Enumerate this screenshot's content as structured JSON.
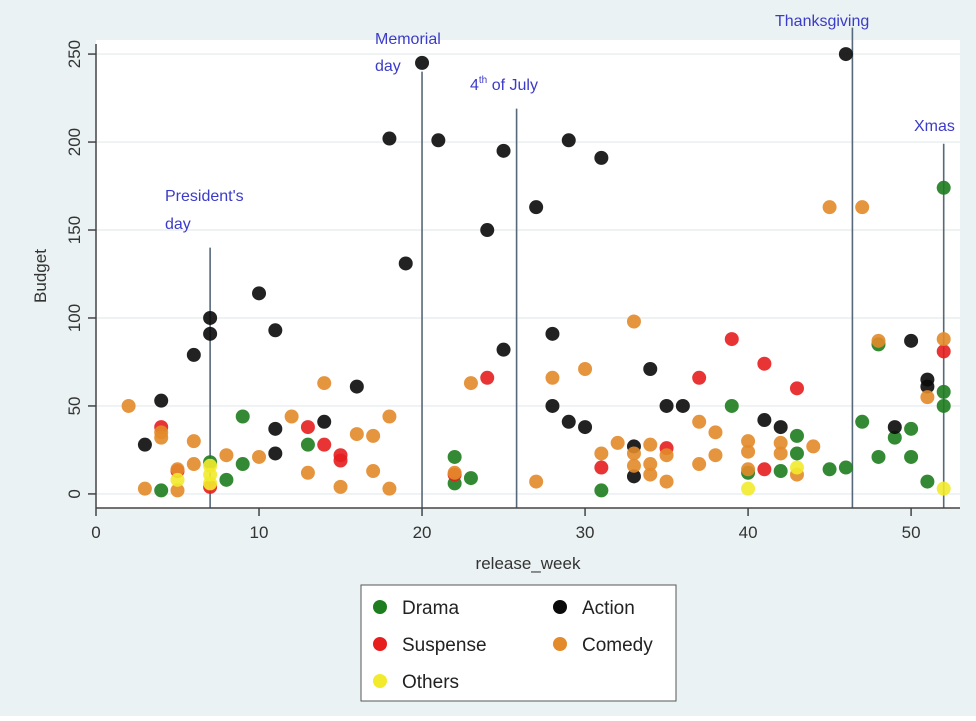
{
  "chart_data": {
    "type": "scatter",
    "title": "",
    "xlabel": "release_week",
    "ylabel": "Budget",
    "xlim": [
      0,
      53
    ],
    "ylim": [
      -8,
      258
    ],
    "xticks": [
      0,
      10,
      20,
      30,
      40,
      50
    ],
    "yticks": [
      0,
      50,
      100,
      150,
      200,
      250
    ],
    "grid": "horizontal",
    "legend_position": "bottom-center",
    "vertical_lines": [
      {
        "label": "President's day",
        "x": 7,
        "y_top": 140
      },
      {
        "label": "Memorial day",
        "x": 20,
        "y_top": 240
      },
      {
        "label": "4th of July",
        "x": 25.8,
        "y_top": 219
      },
      {
        "label": "Thanksgiving",
        "x": 46.4,
        "y_top": 265
      },
      {
        "label": "Xmas",
        "x": 52,
        "y_top": 199
      }
    ],
    "series": [
      {
        "name": "Drama",
        "color": "#1e7d1e",
        "points": [
          [
            4,
            2
          ],
          [
            7,
            18
          ],
          [
            8,
            8
          ],
          [
            9,
            17
          ],
          [
            9,
            44
          ],
          [
            13,
            28
          ],
          [
            22,
            6
          ],
          [
            22,
            21
          ],
          [
            23,
            9
          ],
          [
            31,
            2
          ],
          [
            39,
            50
          ],
          [
            40,
            12
          ],
          [
            42,
            13
          ],
          [
            43,
            23
          ],
          [
            43,
            33
          ],
          [
            45,
            14
          ],
          [
            46,
            15
          ],
          [
            47,
            41
          ],
          [
            48,
            21
          ],
          [
            48,
            85
          ],
          [
            49,
            32
          ],
          [
            50,
            37
          ],
          [
            50,
            21
          ],
          [
            51,
            7
          ],
          [
            52,
            174
          ],
          [
            52,
            50
          ],
          [
            52,
            58
          ]
        ]
      },
      {
        "name": "Action",
        "color": "#0a0a0a",
        "points": [
          [
            3,
            28
          ],
          [
            4,
            53
          ],
          [
            6,
            79
          ],
          [
            7,
            100
          ],
          [
            7,
            91
          ],
          [
            10,
            114
          ],
          [
            11,
            93
          ],
          [
            11,
            37
          ],
          [
            11,
            23
          ],
          [
            14,
            41
          ],
          [
            16,
            61
          ],
          [
            18,
            202
          ],
          [
            19,
            131
          ],
          [
            20,
            245
          ],
          [
            21,
            201
          ],
          [
            24,
            150
          ],
          [
            25,
            195
          ],
          [
            25,
            82
          ],
          [
            27,
            163
          ],
          [
            28,
            91
          ],
          [
            28,
            50
          ],
          [
            29,
            201
          ],
          [
            29,
            41
          ],
          [
            30,
            38
          ],
          [
            31,
            191
          ],
          [
            33,
            27
          ],
          [
            33,
            10
          ],
          [
            34,
            71
          ],
          [
            35,
            50
          ],
          [
            36,
            50
          ],
          [
            41,
            42
          ],
          [
            42,
            38
          ],
          [
            46,
            250
          ],
          [
            49,
            38
          ],
          [
            50,
            87
          ],
          [
            51,
            65
          ],
          [
            51,
            61
          ]
        ]
      },
      {
        "name": "Suspense",
        "color": "#e61e1e",
        "points": [
          [
            4,
            38
          ],
          [
            5,
            13
          ],
          [
            7,
            4
          ],
          [
            13,
            38
          ],
          [
            14,
            28
          ],
          [
            15,
            22
          ],
          [
            15,
            19
          ],
          [
            22,
            11
          ],
          [
            24,
            66
          ],
          [
            31,
            15
          ],
          [
            35,
            26
          ],
          [
            37,
            66
          ],
          [
            39,
            88
          ],
          [
            41,
            74
          ],
          [
            41,
            14
          ],
          [
            43,
            60
          ],
          [
            52,
            81
          ]
        ]
      },
      {
        "name": "Comedy",
        "color": "#e38a2a",
        "points": [
          [
            2,
            50
          ],
          [
            3,
            3
          ],
          [
            4,
            35
          ],
          [
            4,
            32
          ],
          [
            5,
            14
          ],
          [
            5,
            2
          ],
          [
            6,
            30
          ],
          [
            6,
            17
          ],
          [
            8,
            22
          ],
          [
            10,
            21
          ],
          [
            12,
            44
          ],
          [
            13,
            12
          ],
          [
            14,
            63
          ],
          [
            15,
            4
          ],
          [
            16,
            34
          ],
          [
            17,
            33
          ],
          [
            17,
            13
          ],
          [
            18,
            44
          ],
          [
            18,
            3
          ],
          [
            22,
            12
          ],
          [
            23,
            63
          ],
          [
            27,
            7
          ],
          [
            28,
            66
          ],
          [
            30,
            71
          ],
          [
            31,
            23
          ],
          [
            32,
            29
          ],
          [
            33,
            98
          ],
          [
            33,
            23
          ],
          [
            33,
            16
          ],
          [
            34,
            28
          ],
          [
            34,
            17
          ],
          [
            34,
            11
          ],
          [
            35,
            22
          ],
          [
            35,
            7
          ],
          [
            37,
            41
          ],
          [
            37,
            17
          ],
          [
            38,
            35
          ],
          [
            38,
            22
          ],
          [
            40,
            30
          ],
          [
            40,
            24
          ],
          [
            40,
            14
          ],
          [
            42,
            29
          ],
          [
            42,
            23
          ],
          [
            43,
            11
          ],
          [
            44,
            27
          ],
          [
            45,
            163
          ],
          [
            47,
            163
          ],
          [
            48,
            87
          ],
          [
            51,
            55
          ],
          [
            52,
            88
          ]
        ]
      },
      {
        "name": "Others",
        "color": "#f2ea2c",
        "points": [
          [
            5,
            8
          ],
          [
            7,
            16
          ],
          [
            7,
            11
          ],
          [
            7,
            6
          ],
          [
            40,
            3
          ],
          [
            43,
            15
          ],
          [
            52,
            3
          ]
        ]
      }
    ]
  }
}
